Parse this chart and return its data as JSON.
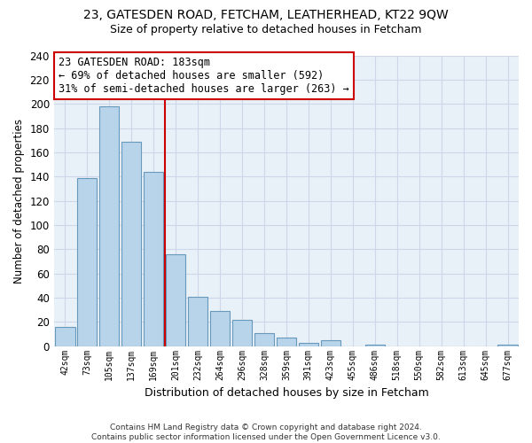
{
  "title": "23, GATESDEN ROAD, FETCHAM, LEATHERHEAD, KT22 9QW",
  "subtitle": "Size of property relative to detached houses in Fetcham",
  "xlabel": "Distribution of detached houses by size in Fetcham",
  "ylabel": "Number of detached properties",
  "bar_labels": [
    "42sqm",
    "73sqm",
    "105sqm",
    "137sqm",
    "169sqm",
    "201sqm",
    "232sqm",
    "264sqm",
    "296sqm",
    "328sqm",
    "359sqm",
    "391sqm",
    "423sqm",
    "455sqm",
    "486sqm",
    "518sqm",
    "550sqm",
    "582sqm",
    "613sqm",
    "645sqm",
    "677sqm"
  ],
  "bar_values": [
    16,
    139,
    198,
    169,
    144,
    76,
    41,
    29,
    22,
    11,
    7,
    3,
    5,
    0,
    1,
    0,
    0,
    0,
    0,
    0,
    1
  ],
  "bar_color": "#b8d4ea",
  "bar_edge_color": "#6699bb",
  "vline_color": "#cc0000",
  "ylim": [
    0,
    240
  ],
  "yticks": [
    0,
    20,
    40,
    60,
    80,
    100,
    120,
    140,
    160,
    180,
    200,
    220,
    240
  ],
  "annotation_title": "23 GATESDEN ROAD: 183sqm",
  "annotation_line1": "← 69% of detached houses are smaller (592)",
  "annotation_line2": "31% of semi-detached houses are larger (263) →",
  "annotation_box_color": "#ffffff",
  "annotation_box_edge": "#cc0000",
  "footer_line1": "Contains HM Land Registry data © Crown copyright and database right 2024.",
  "footer_line2": "Contains public sector information licensed under the Open Government Licence v3.0.",
  "bg_color": "#ffffff",
  "grid_color": "#ccd8e8",
  "plot_bg_color": "#e8f0f8"
}
